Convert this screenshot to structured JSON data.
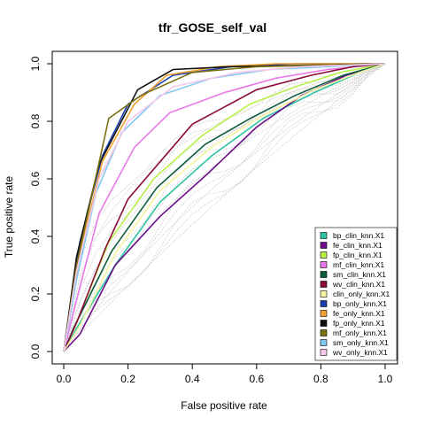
{
  "chart_data": {
    "type": "line",
    "title": "tfr_GOSE_self_val",
    "xlabel": "False positive rate",
    "ylabel": "True positive rate",
    "xlim": [
      0,
      1
    ],
    "ylim": [
      0,
      1
    ],
    "xticks": [
      "0.0",
      "0.2",
      "0.4",
      "0.6",
      "0.8",
      "1.0"
    ],
    "yticks": [
      "0.0",
      "0.2",
      "0.4",
      "0.6",
      "0.8",
      "1.0"
    ],
    "legend_position": "bottom-right",
    "grid": false,
    "series": [
      {
        "name": "bp_clin_knn.X1",
        "color": "#2ec4a5",
        "x": [
          0,
          0.04,
          0.16,
          0.3,
          0.46,
          0.62,
          0.78,
          0.92,
          1
        ],
        "y": [
          0,
          0.08,
          0.3,
          0.52,
          0.68,
          0.81,
          0.9,
          0.97,
          1
        ]
      },
      {
        "name": "fe_clin_knn.X1",
        "color": "#6b0e8a",
        "x": [
          0,
          0.05,
          0.16,
          0.3,
          0.45,
          0.6,
          0.74,
          0.88,
          1
        ],
        "y": [
          0,
          0.06,
          0.3,
          0.47,
          0.62,
          0.78,
          0.89,
          0.96,
          1
        ]
      },
      {
        "name": "fp_clin_knn.X1",
        "color": "#b8f04a",
        "x": [
          0,
          0.04,
          0.14,
          0.28,
          0.43,
          0.58,
          0.72,
          0.86,
          1
        ],
        "y": [
          0,
          0.1,
          0.38,
          0.6,
          0.75,
          0.86,
          0.92,
          0.97,
          1
        ]
      },
      {
        "name": "mf_clin_knn.X1",
        "color": "#e879e8",
        "x": [
          0,
          0.04,
          0.11,
          0.22,
          0.33,
          0.5,
          0.66,
          0.82,
          1
        ],
        "y": [
          0,
          0.18,
          0.48,
          0.71,
          0.83,
          0.9,
          0.95,
          0.98,
          1
        ]
      },
      {
        "name": "sm_clin_knn.X1",
        "color": "#0d5c3a",
        "x": [
          0,
          0.03,
          0.15,
          0.29,
          0.44,
          0.58,
          0.72,
          0.87,
          1
        ],
        "y": [
          0,
          0.08,
          0.35,
          0.57,
          0.72,
          0.81,
          0.89,
          0.96,
          1
        ]
      },
      {
        "name": "wv_clin_knn.X1",
        "color": "#8b0d35",
        "x": [
          0,
          0.04,
          0.13,
          0.2,
          0.4,
          0.6,
          0.77,
          0.9,
          1
        ],
        "y": [
          0,
          0.1,
          0.36,
          0.53,
          0.79,
          0.91,
          0.96,
          0.99,
          1
        ]
      },
      {
        "name": "clin_only_knn.X1",
        "color": "#f5f5a0",
        "x": [
          0,
          0.05,
          0.16,
          0.3,
          0.46,
          0.62,
          0.78,
          0.92,
          1
        ],
        "y": [
          0,
          0.09,
          0.34,
          0.56,
          0.71,
          0.82,
          0.91,
          0.97,
          1
        ]
      },
      {
        "name": "bp_only_knn.X1",
        "color": "#1c3fb0",
        "x": [
          0,
          0.05,
          0.12,
          0.2,
          0.34,
          0.52,
          0.72,
          1
        ],
        "y": [
          0,
          0.38,
          0.68,
          0.86,
          0.96,
          0.99,
          1,
          1
        ]
      },
      {
        "name": "fe_only_knn.X1",
        "color": "#f0a030",
        "x": [
          0,
          0.05,
          0.12,
          0.22,
          0.32,
          0.48,
          0.66,
          1
        ],
        "y": [
          0,
          0.34,
          0.66,
          0.86,
          0.96,
          0.99,
          1,
          1
        ]
      },
      {
        "name": "fp_only_knn.X1",
        "color": "#111111",
        "x": [
          0,
          0.04,
          0.11,
          0.23,
          0.34,
          0.52,
          1
        ],
        "y": [
          0,
          0.33,
          0.65,
          0.91,
          0.98,
          0.99,
          1
        ]
      },
      {
        "name": "mf_only_knn.X1",
        "color": "#7a7010",
        "x": [
          0,
          0.04,
          0.14,
          0.24,
          0.4,
          0.6,
          1
        ],
        "y": [
          0,
          0.3,
          0.81,
          0.89,
          0.97,
          0.99,
          1
        ]
      },
      {
        "name": "sm_only_knn.X1",
        "color": "#80c8f0",
        "x": [
          0,
          0.04,
          0.1,
          0.18,
          0.3,
          0.46,
          0.64,
          0.82,
          1
        ],
        "y": [
          0,
          0.25,
          0.55,
          0.76,
          0.89,
          0.95,
          0.98,
          0.99,
          1
        ]
      },
      {
        "name": "wv_only_knn.X1",
        "color": "#f7c8ec",
        "x": [
          0,
          0.04,
          0.11,
          0.2,
          0.34,
          0.54,
          0.74,
          1
        ],
        "y": [
          0,
          0.28,
          0.6,
          0.8,
          0.92,
          0.97,
          0.99,
          1
        ]
      }
    ]
  }
}
